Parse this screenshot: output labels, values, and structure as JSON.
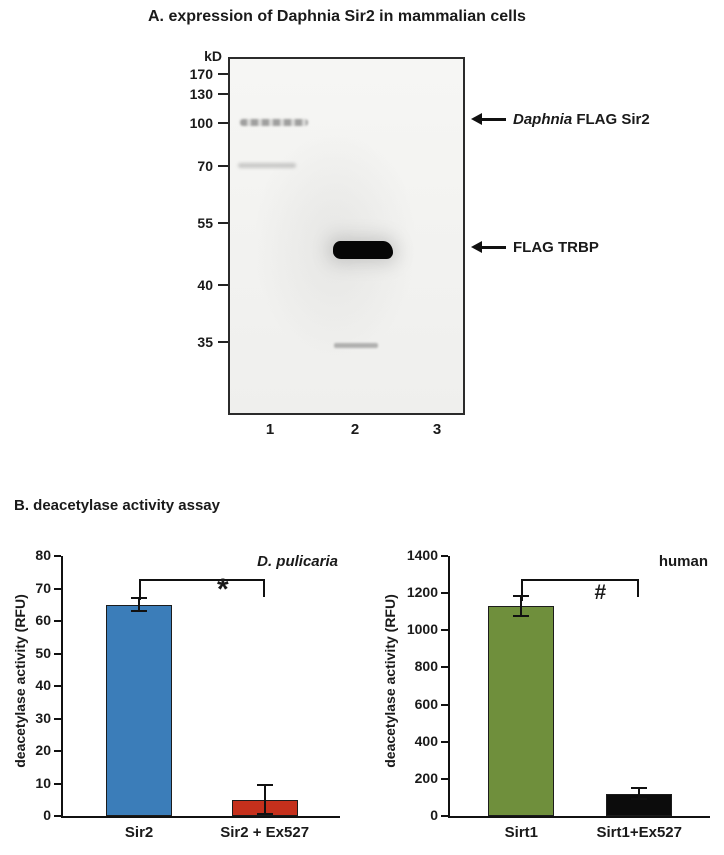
{
  "panel_a": {
    "title": "A. expression of Daphnia Sir2 in mammalian cells",
    "kd_unit": "kD",
    "markers": [
      "170",
      "130",
      "100",
      "70",
      "55",
      "40",
      "35"
    ],
    "lanes": [
      "1",
      "2",
      "3"
    ],
    "annotations": [
      {
        "italic": "Daphnia",
        "label": " FLAG Sir2"
      },
      {
        "italic": "",
        "label": "FLAG TRBP"
      }
    ]
  },
  "panel_b": {
    "title": "B. deacetylase activity assay"
  },
  "chart_data": [
    {
      "type": "bar",
      "title": "D. pulicaria",
      "title_italic": true,
      "annotation": "*",
      "categories": [
        "Sir2",
        "Sir2 + Ex527"
      ],
      "values": [
        65,
        5
      ],
      "errors": [
        2,
        4.5
      ],
      "colors": [
        "#3b7db9",
        "#c5301c"
      ],
      "ylabel": "deacetylase activity (RFU)",
      "ylim": [
        0,
        80
      ],
      "ytick_step": 10,
      "grid": false,
      "legend": "none"
    },
    {
      "type": "bar",
      "title": "human",
      "title_italic": false,
      "annotation": "#",
      "categories": [
        "Sirt1",
        "Sirt1+Ex527"
      ],
      "values": [
        1130,
        120
      ],
      "errors": [
        55,
        30
      ],
      "colors": [
        "#6f8f3c",
        "#0c0c0c"
      ],
      "ylabel": "deacetylase activity (RFU)",
      "ylim": [
        0,
        1400
      ],
      "ytick_step": 200,
      "grid": false,
      "legend": "none"
    }
  ]
}
